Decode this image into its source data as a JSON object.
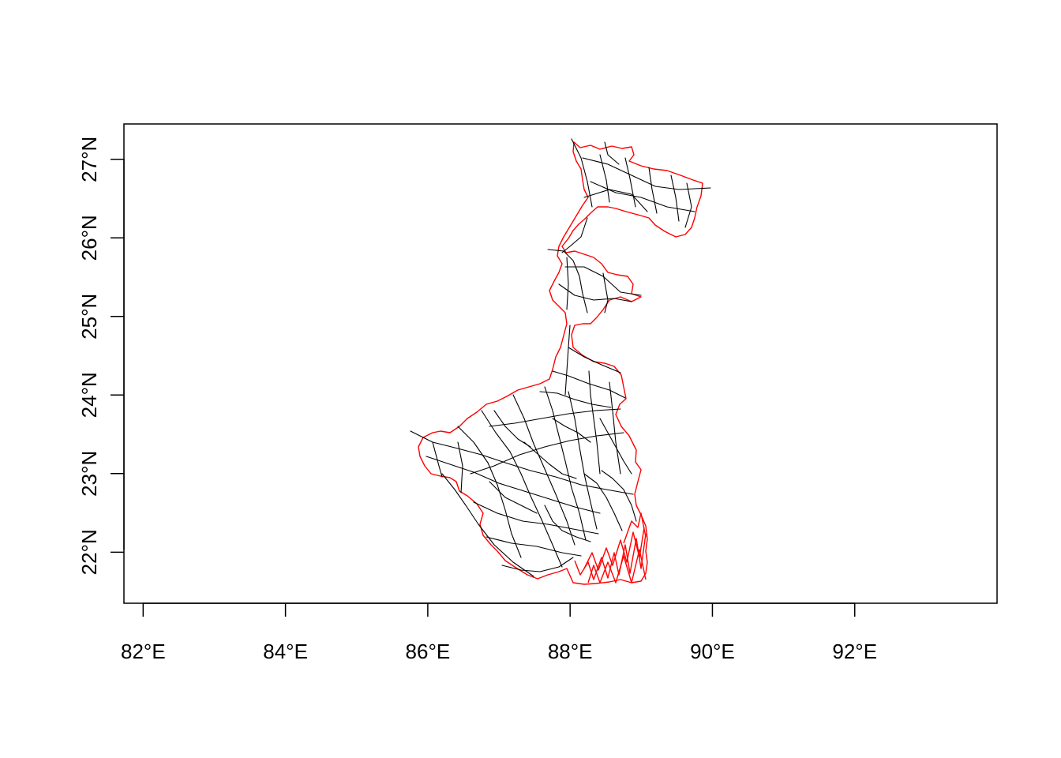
{
  "map": {
    "x_ticks": [
      {
        "value": 82,
        "label": "82°E"
      },
      {
        "value": 84,
        "label": "84°E"
      },
      {
        "value": 86,
        "label": "86°E"
      },
      {
        "value": 88,
        "label": "88°E"
      },
      {
        "value": 90,
        "label": "90°E"
      },
      {
        "value": 92,
        "label": "92°E"
      }
    ],
    "y_ticks": [
      {
        "value": 22,
        "label": "22°N"
      },
      {
        "value": 23,
        "label": "23°N"
      },
      {
        "value": 24,
        "label": "24°N"
      },
      {
        "value": 25,
        "label": "25°N"
      },
      {
        "value": 26,
        "label": "26°N"
      },
      {
        "value": 27,
        "label": "27°N"
      }
    ],
    "x_range": [
      81.73,
      94.0
    ],
    "y_range": [
      21.35,
      27.45
    ],
    "boundary_color": "#ff0000",
    "road_color": "#000000",
    "layers": [
      "state-boundary",
      "road-network"
    ]
  }
}
